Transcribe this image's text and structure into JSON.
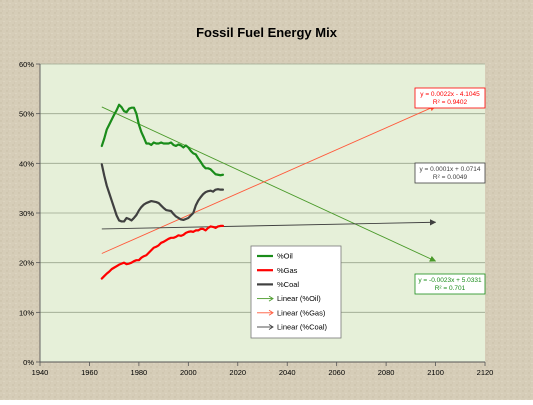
{
  "chart_data": {
    "type": "line",
    "title": "Fossil Fuel Energy Mix",
    "xlabel": "",
    "ylabel": "",
    "xlim": [
      1940,
      2120
    ],
    "ylim": [
      0,
      0.6
    ],
    "x_ticks": [
      1940,
      1960,
      1980,
      2000,
      2020,
      2040,
      2060,
      2080,
      2100,
      2120
    ],
    "x_tick_labels": [
      "1940",
      "1960",
      "1980",
      "2000",
      "2020",
      "2040",
      "2060",
      "2080",
      "2100",
      "2120"
    ],
    "y_ticks": [
      0,
      0.1,
      0.2,
      0.3,
      0.4,
      0.5,
      0.6
    ],
    "y_tick_labels": [
      "0%",
      "10%",
      "20%",
      "30%",
      "40%",
      "50%",
      "60%"
    ],
    "grid": "horizontal",
    "legend_position": "center-right",
    "series": [
      {
        "name": "%Oil",
        "color": "#1a8c1a",
        "x": [
          1965,
          1966,
          1967,
          1968,
          1969,
          1970,
          1971,
          1972,
          1973,
          1974,
          1975,
          1976,
          1977,
          1978,
          1979,
          1980,
          1981,
          1982,
          1983,
          1984,
          1985,
          1986,
          1987,
          1988,
          1989,
          1990,
          1991,
          1992,
          1993,
          1994,
          1995,
          1996,
          1997,
          1998,
          1999,
          2000,
          2001,
          2002,
          2003,
          2004,
          2005,
          2006,
          2007,
          2008,
          2009,
          2010,
          2011,
          2012,
          2013,
          2014
        ],
        "values": [
          0.435,
          0.45,
          0.468,
          0.478,
          0.488,
          0.498,
          0.507,
          0.518,
          0.513,
          0.505,
          0.503,
          0.51,
          0.512,
          0.512,
          0.5,
          0.478,
          0.463,
          0.452,
          0.44,
          0.44,
          0.437,
          0.442,
          0.44,
          0.44,
          0.442,
          0.44,
          0.44,
          0.44,
          0.442,
          0.437,
          0.435,
          0.438,
          0.436,
          0.432,
          0.436,
          0.432,
          0.425,
          0.42,
          0.418,
          0.41,
          0.403,
          0.395,
          0.39,
          0.39,
          0.388,
          0.383,
          0.378,
          0.377,
          0.376,
          0.377
        ]
      },
      {
        "name": "%Gas",
        "color": "#ff0000",
        "x": [
          1965,
          1966,
          1967,
          1968,
          1969,
          1970,
          1971,
          1972,
          1973,
          1974,
          1975,
          1976,
          1977,
          1978,
          1979,
          1980,
          1981,
          1982,
          1983,
          1984,
          1985,
          1986,
          1987,
          1988,
          1989,
          1990,
          1991,
          1992,
          1993,
          1994,
          1995,
          1996,
          1997,
          1998,
          1999,
          2000,
          2001,
          2002,
          2003,
          2004,
          2005,
          2006,
          2007,
          2008,
          2009,
          2010,
          2011,
          2012,
          2013,
          2014
        ],
        "values": [
          0.168,
          0.173,
          0.178,
          0.182,
          0.187,
          0.19,
          0.193,
          0.196,
          0.198,
          0.2,
          0.197,
          0.198,
          0.2,
          0.203,
          0.205,
          0.205,
          0.21,
          0.213,
          0.215,
          0.22,
          0.225,
          0.23,
          0.232,
          0.235,
          0.24,
          0.242,
          0.245,
          0.248,
          0.25,
          0.25,
          0.252,
          0.255,
          0.254,
          0.256,
          0.26,
          0.262,
          0.263,
          0.262,
          0.265,
          0.265,
          0.268,
          0.268,
          0.265,
          0.27,
          0.273,
          0.272,
          0.27,
          0.273,
          0.274,
          0.274
        ]
      },
      {
        "name": "%Coal",
        "color": "#404040",
        "x": [
          1965,
          1966,
          1967,
          1968,
          1969,
          1970,
          1971,
          1972,
          1973,
          1974,
          1975,
          1976,
          1977,
          1978,
          1979,
          1980,
          1981,
          1982,
          1983,
          1984,
          1985,
          1986,
          1987,
          1988,
          1989,
          1990,
          1991,
          1992,
          1993,
          1994,
          1995,
          1996,
          1997,
          1998,
          1999,
          2000,
          2001,
          2002,
          2003,
          2004,
          2005,
          2006,
          2007,
          2008,
          2009,
          2010,
          2011,
          2012,
          2013,
          2014
        ],
        "values": [
          0.398,
          0.375,
          0.355,
          0.34,
          0.325,
          0.31,
          0.295,
          0.285,
          0.283,
          0.283,
          0.29,
          0.288,
          0.285,
          0.29,
          0.296,
          0.305,
          0.312,
          0.317,
          0.32,
          0.322,
          0.324,
          0.323,
          0.322,
          0.32,
          0.315,
          0.31,
          0.306,
          0.305,
          0.304,
          0.298,
          0.293,
          0.29,
          0.287,
          0.286,
          0.288,
          0.29,
          0.295,
          0.3,
          0.315,
          0.325,
          0.332,
          0.338,
          0.342,
          0.344,
          0.345,
          0.343,
          0.347,
          0.348,
          0.347,
          0.347
        ]
      }
    ],
    "trendlines": [
      {
        "name": "Linear (%Oil)",
        "color": "#4a9a2a",
        "slope": -0.0023,
        "intercept": 5.0331,
        "x_range": [
          1965,
          2100
        ],
        "equation": "y = -0.0023x + 5.0331",
        "r2": "R² = 0.701",
        "label_border": "#1a8c1a"
      },
      {
        "name": "Linear (%Gas)",
        "color": "#ff5a3c",
        "slope": 0.0022,
        "intercept": -4.1045,
        "x_range": [
          1965,
          2100
        ],
        "equation": "y = 0.0022x - 4.1045",
        "r2": "R² = 0.9402",
        "label_border": "#ff0000"
      },
      {
        "name": "Linear (%Coal)",
        "color": "#404040",
        "slope": 0.0001,
        "intercept": 0.0714,
        "x_range": [
          1965,
          2100
        ],
        "equation": "y = 0.0001x + 0.0714",
        "r2": "R² = 0.0049",
        "label_border": "#404040"
      }
    ]
  }
}
